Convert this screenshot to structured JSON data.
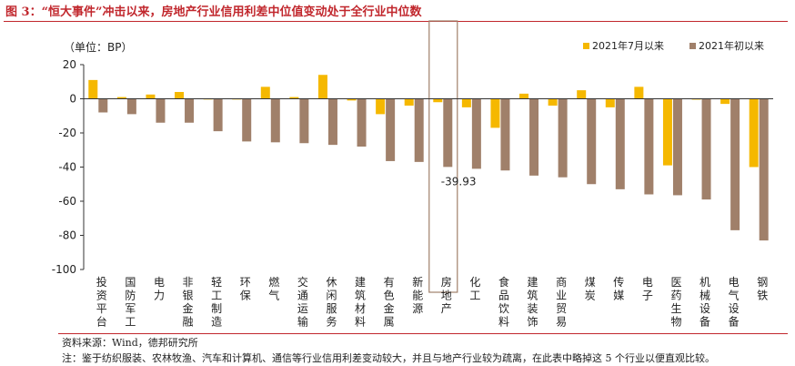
{
  "title": "图 3：“恒大事件”冲击以来，房地产行业信用利差中位值变动处于全行业中位数",
  "source": "资料来源：Wind，德邦研究所",
  "note": "注：鉴于纺织服装、农林牧渔、汽车和计算机、通信等行业信用利差变动较大，并且与地产行业较为疏离，在此表中略掉这 5 个行业以便直观比较。",
  "colors": {
    "series1": "#F5B800",
    "series2": "#A0806A",
    "title": "#c1272d",
    "highlight": "#A0806A"
  },
  "chart_data": {
    "type": "bar",
    "unit_label": "（单位：BP）",
    "ylim": [
      -100,
      20
    ],
    "yticks": [
      20,
      0,
      -20,
      -40,
      -60,
      -80,
      -100
    ],
    "grid": false,
    "legend_position": "top-right",
    "categories": [
      "投资平台",
      "国防军工",
      "电力",
      "非银金融",
      "轻工制造",
      "环保",
      "燃气",
      "交通运输",
      "休闲服务",
      "建筑材料",
      "有色金属",
      "新能源",
      "房地产",
      "化工",
      "食品饮料",
      "建筑装饰",
      "商业贸易",
      "煤炭",
      "传媒",
      "电子",
      "医药生物",
      "机械设备",
      "电气设备",
      "钢铁"
    ],
    "series": [
      {
        "name": "2021年7月以来",
        "values": [
          11,
          1,
          2.5,
          4,
          0,
          0,
          7,
          1,
          14,
          -1,
          -9,
          -4,
          -2,
          -5,
          -17,
          3,
          -4,
          5,
          -5,
          7,
          -39,
          -0.5,
          -3,
          -40
        ]
      },
      {
        "name": "2021年初以来",
        "values": [
          -8,
          -9,
          -14,
          -14,
          -19,
          -25,
          -25.5,
          -26,
          -27,
          -28,
          -36.5,
          -37,
          -39.93,
          -41,
          -42,
          -45,
          -46,
          -50,
          -53,
          -56,
          -56.5,
          -59,
          -77,
          -83
        ]
      }
    ],
    "annotation": {
      "category": "房地产",
      "text": "-39.93"
    }
  }
}
